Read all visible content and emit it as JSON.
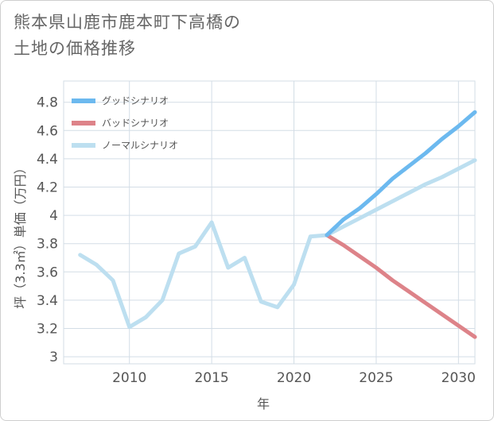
{
  "title_lines": [
    "熊本県山鹿市鹿本町下高橋の",
    "土地の価格推移"
  ],
  "chart_data": {
    "type": "line",
    "title": "熊本県山鹿市鹿本町下高橋の土地の価格推移",
    "xlabel": "年",
    "ylabel": "坪（3.3㎡）単価（万円）",
    "xlim": [
      2006,
      2031
    ],
    "ylim": [
      2.95,
      4.95
    ],
    "x_ticks": [
      2010,
      2015,
      2020,
      2025,
      2030
    ],
    "y_ticks": [
      3,
      3.2,
      3.4,
      3.6,
      3.8,
      4,
      4.2,
      4.4,
      4.6,
      4.8
    ],
    "y_tick_labels": [
      "3",
      "3.2",
      "3.4",
      "3.6",
      "3.8",
      "4",
      "4.2",
      "4.4",
      "4.6",
      "4.8"
    ],
    "grid": true,
    "legend_position": "top-left",
    "series": [
      {
        "name": "グッドシナリオ",
        "color": "#6cb9ef",
        "x": [
          2022,
          2023,
          2024,
          2025,
          2026,
          2027,
          2028,
          2029,
          2030,
          2031
        ],
        "y": [
          3.86,
          3.97,
          4.05,
          4.15,
          4.26,
          4.35,
          4.44,
          4.54,
          4.63,
          4.73
        ]
      },
      {
        "name": "バッドシナリオ",
        "color": "#dd8389",
        "x": [
          2022,
          2023,
          2024,
          2025,
          2026,
          2027,
          2028,
          2029,
          2030,
          2031
        ],
        "y": [
          3.86,
          3.79,
          3.71,
          3.63,
          3.54,
          3.46,
          3.38,
          3.3,
          3.22,
          3.14
        ]
      },
      {
        "name": "ノーマルシナリオ",
        "color": "#bddff0",
        "x": [
          2007,
          2008,
          2009,
          2010,
          2011,
          2012,
          2013,
          2014,
          2015,
          2016,
          2017,
          2018,
          2019,
          2020,
          2021,
          2022,
          2023,
          2024,
          2025,
          2026,
          2027,
          2028,
          2029,
          2030,
          2031
        ],
        "y": [
          3.72,
          3.65,
          3.54,
          3.21,
          3.28,
          3.4,
          3.73,
          3.78,
          3.95,
          3.63,
          3.7,
          3.39,
          3.35,
          3.51,
          3.85,
          3.86,
          3.92,
          3.98,
          4.04,
          4.1,
          4.16,
          4.22,
          4.27,
          4.33,
          4.39
        ]
      }
    ]
  }
}
